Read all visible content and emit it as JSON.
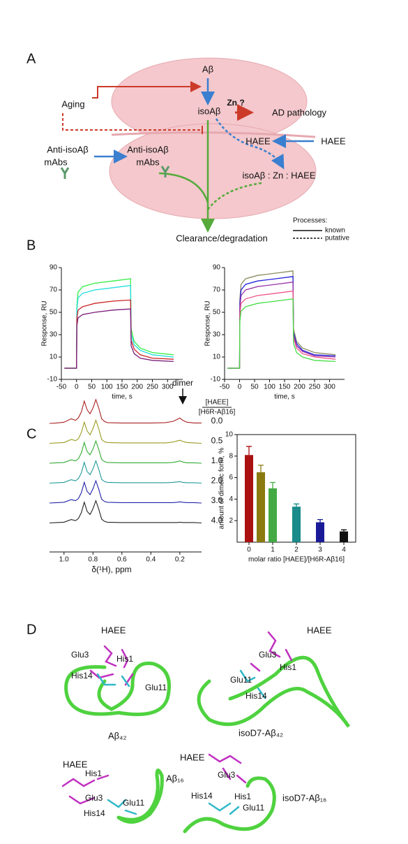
{
  "panel_labels": [
    "A",
    "B",
    "C",
    "D"
  ],
  "diagram": {
    "ab": "Aβ",
    "isoab": "isoAβ",
    "zn": "Zn ?",
    "ad": "AD pathology",
    "aging": "Aging",
    "haee_in": "HAEE",
    "haee_out": "HAEE",
    "mabs_out": [
      "Anti-isoAβ",
      "mAbs"
    ],
    "mabs_in": [
      "Anti-isoAβ",
      "mAbs"
    ],
    "complex": "isoAβ : Zn : HAEE",
    "clearance": "Clearance/degradation",
    "legend": {
      "title": "Processes:",
      "items": [
        "known",
        "putative"
      ]
    }
  },
  "chart_data": [
    {
      "type": "line",
      "xlabel": "time, s",
      "ylabel": "Response, RU",
      "xlim": [
        -50,
        350
      ],
      "ylim": [
        -10,
        90
      ],
      "xticks": [
        -50,
        0,
        50,
        100,
        150,
        200,
        250,
        300
      ],
      "yticks": [
        -10,
        10,
        30,
        50,
        70,
        90
      ],
      "x": [
        -40,
        0,
        1,
        5,
        20,
        60,
        120,
        178,
        180,
        190,
        210,
        250,
        320
      ],
      "series": [
        {
          "color": "#33ee44",
          "values": [
            0,
            0,
            55,
            68,
            73,
            76,
            78,
            80,
            35,
            24,
            18,
            14,
            12
          ]
        },
        {
          "color": "#22dddd",
          "values": [
            0,
            0,
            52,
            63,
            67,
            70,
            72,
            74,
            30,
            21,
            16,
            12,
            10
          ]
        },
        {
          "color": "#cc2222",
          "values": [
            0,
            0,
            44,
            52,
            55,
            58,
            60,
            61,
            25,
            17,
            12,
            9,
            8
          ]
        },
        {
          "color": "#7a1a7a",
          "values": [
            0,
            0,
            38,
            45,
            48,
            50,
            52,
            53,
            20,
            13,
            9,
            7,
            6
          ]
        }
      ]
    },
    {
      "type": "line",
      "xlabel": "time, s",
      "ylabel": "Response, RU",
      "xlim": [
        -50,
        350
      ],
      "ylim": [
        -10,
        90
      ],
      "xticks": [
        -50,
        0,
        50,
        100,
        150,
        200,
        250,
        300
      ],
      "yticks": [
        -10,
        10,
        30,
        50,
        70,
        90
      ],
      "x": [
        -40,
        0,
        1,
        5,
        20,
        60,
        120,
        178,
        180,
        190,
        210,
        250,
        320
      ],
      "series": [
        {
          "color": "#8a8a60",
          "values": [
            0,
            0,
            62,
            75,
            80,
            83,
            85,
            87,
            35,
            24,
            18,
            14,
            12
          ]
        },
        {
          "color": "#2222dd",
          "values": [
            0,
            0,
            58,
            70,
            75,
            78,
            80,
            82,
            32,
            22,
            16,
            12,
            11
          ]
        },
        {
          "color": "#9933aa",
          "values": [
            0,
            0,
            54,
            65,
            70,
            73,
            75,
            77,
            30,
            20,
            15,
            11,
            10
          ]
        },
        {
          "color": "#ee5588",
          "values": [
            0,
            0,
            48,
            58,
            62,
            65,
            67,
            69,
            27,
            18,
            13,
            10,
            8
          ]
        },
        {
          "color": "#44dd44",
          "values": [
            0,
            0,
            42,
            51,
            55,
            58,
            60,
            62,
            22,
            14,
            10,
            7,
            6
          ]
        }
      ]
    },
    {
      "type": "spectra",
      "xlabel": "δ(¹H), ppm",
      "annotation": "dimer",
      "ratio_header": [
        "[HAEE]",
        "[H6R-Aβ16]"
      ],
      "xlim": [
        1.1,
        0.05
      ],
      "xticks": [
        {
          "value": 1,
          "label": "1.0"
        },
        {
          "value": 0.8,
          "label": "0.8"
        },
        {
          "value": 0.6,
          "label": "0.6"
        },
        {
          "value": 0.4,
          "label": "0.4"
        },
        {
          "value": 0.2,
          "label": "0.2"
        }
      ],
      "x": [
        1.1,
        1.05,
        1.0,
        0.95,
        0.92,
        0.9,
        0.88,
        0.86,
        0.84,
        0.82,
        0.8,
        0.78,
        0.76,
        0.74,
        0.72,
        0.7,
        0.6,
        0.5,
        0.4,
        0.3,
        0.25,
        0.22,
        0.2,
        0.18,
        0.15,
        0.1,
        0.05
      ],
      "series": [
        {
          "name": "0.0",
          "color": "#aa2222",
          "values": [
            0,
            1,
            3,
            12,
            8,
            15,
            30,
            58,
            35,
            25,
            40,
            62,
            40,
            12,
            5,
            2,
            1,
            1,
            1,
            2,
            5,
            10,
            14,
            8,
            3,
            1,
            1
          ]
        },
        {
          "name": "0.5",
          "color": "#9a9a20",
          "values": [
            0,
            1,
            2,
            10,
            7,
            12,
            28,
            55,
            32,
            22,
            38,
            60,
            38,
            10,
            4,
            2,
            1,
            1,
            1,
            1,
            3,
            6,
            8,
            5,
            2,
            1,
            0
          ]
        },
        {
          "name": "1.0",
          "color": "#33aa33",
          "values": [
            0,
            1,
            2,
            9,
            6,
            12,
            27,
            54,
            30,
            22,
            37,
            58,
            36,
            10,
            4,
            2,
            1,
            1,
            1,
            1,
            2,
            4,
            6,
            3,
            1,
            1,
            0
          ]
        },
        {
          "name": "2.0",
          "color": "#229999",
          "values": [
            0,
            1,
            2,
            9,
            6,
            12,
            27,
            54,
            30,
            22,
            37,
            58,
            36,
            10,
            4,
            2,
            1,
            1,
            1,
            1,
            2,
            3,
            4,
            2,
            1,
            1,
            0
          ]
        },
        {
          "name": "3.0",
          "color": "#2222aa",
          "values": [
            0,
            1,
            2,
            9,
            6,
            12,
            27,
            54,
            30,
            22,
            37,
            58,
            36,
            10,
            4,
            2,
            1,
            1,
            1,
            1,
            1,
            2,
            3,
            2,
            1,
            1,
            0
          ]
        },
        {
          "name": "4.0",
          "color": "#222222",
          "values": [
            0,
            1,
            2,
            9,
            6,
            12,
            27,
            54,
            30,
            22,
            37,
            58,
            36,
            10,
            4,
            2,
            1,
            1,
            1,
            1,
            1,
            1,
            2,
            1,
            1,
            1,
            0
          ]
        }
      ]
    },
    {
      "type": "bar",
      "ylabel": "amount of dimeric form, %",
      "xlabel": "molar ratio [HAEE]/[H6R-Aβ16]",
      "xlim": [
        -0.5,
        4.5
      ],
      "ylim": [
        0,
        10
      ],
      "xticks": [
        0,
        1,
        2,
        3,
        4
      ],
      "yticks": [
        2,
        4,
        6,
        8,
        10
      ],
      "x": [
        0,
        0.5,
        1,
        2,
        3,
        4
      ],
      "values": [
        8.1,
        6.5,
        5.0,
        3.3,
        1.85,
        1.0
      ],
      "errors": [
        0.8,
        0.65,
        0.55,
        0.25,
        0.25,
        0.15
      ],
      "colors": [
        "#aa1111",
        "#8a7a10",
        "#44aa44",
        "#1a8a8a",
        "#1a1a99",
        "#111111"
      ]
    }
  ],
  "structures": [
    {
      "title": "Aβ₄₂",
      "labels": [
        "HAEE",
        "Glu3",
        "His1",
        "His14",
        "Glu11"
      ]
    },
    {
      "title": "isoD7-Aβ₄₂",
      "labels": [
        "HAEE",
        "Glu3",
        "His1",
        "Glu11",
        "His14"
      ]
    },
    {
      "title": "Aβ₁₆",
      "labels": [
        "HAEE",
        "His1",
        "Glu3",
        "Glu11",
        "His14"
      ]
    },
    {
      "title": "isoD7-Aβ₁₆",
      "labels": [
        "HAEE",
        "Glu3",
        "His14",
        "His1",
        "Glu11"
      ]
    }
  ]
}
